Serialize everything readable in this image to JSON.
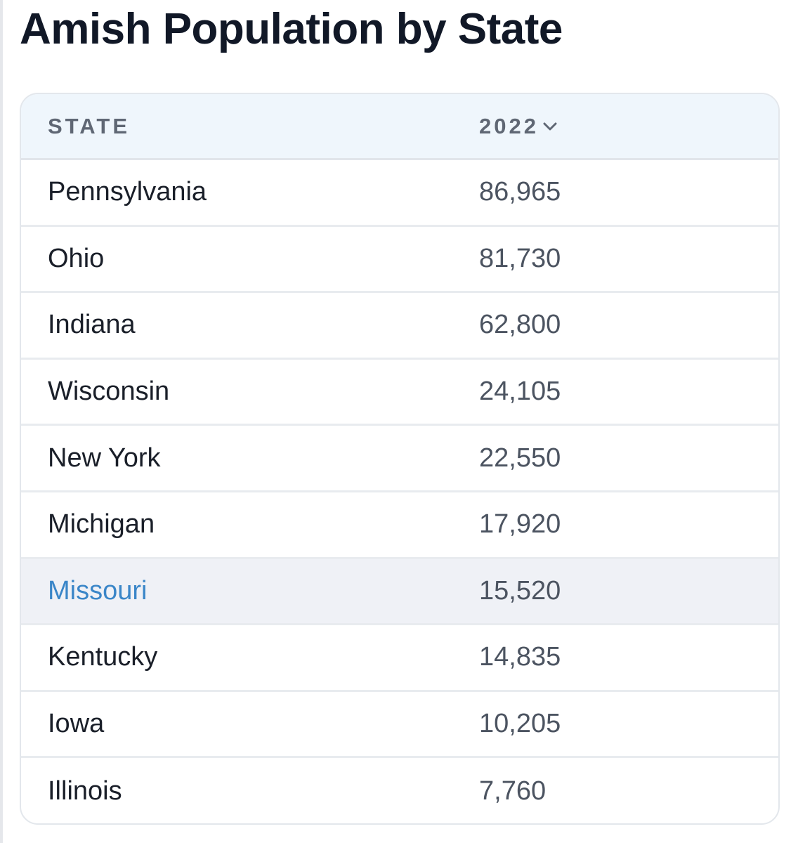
{
  "title": "Amish Population by State",
  "accent_color": "#3a86c8",
  "table": {
    "columns": [
      {
        "label": "STATE"
      },
      {
        "label": "2022",
        "sort_icon": "chevron-down-icon"
      }
    ],
    "rows": [
      {
        "state": "Pennsylvania",
        "value": "86,965"
      },
      {
        "state": "Ohio",
        "value": "81,730"
      },
      {
        "state": "Indiana",
        "value": "62,800"
      },
      {
        "state": "Wisconsin",
        "value": "24,105"
      },
      {
        "state": "New York",
        "value": "22,550"
      },
      {
        "state": "Michigan",
        "value": "17,920"
      },
      {
        "state": "Missouri",
        "value": "15,520",
        "highlighted": true
      },
      {
        "state": "Kentucky",
        "value": "14,835"
      },
      {
        "state": "Iowa",
        "value": "10,205"
      },
      {
        "state": "Illinois",
        "value": "7,760"
      }
    ]
  }
}
